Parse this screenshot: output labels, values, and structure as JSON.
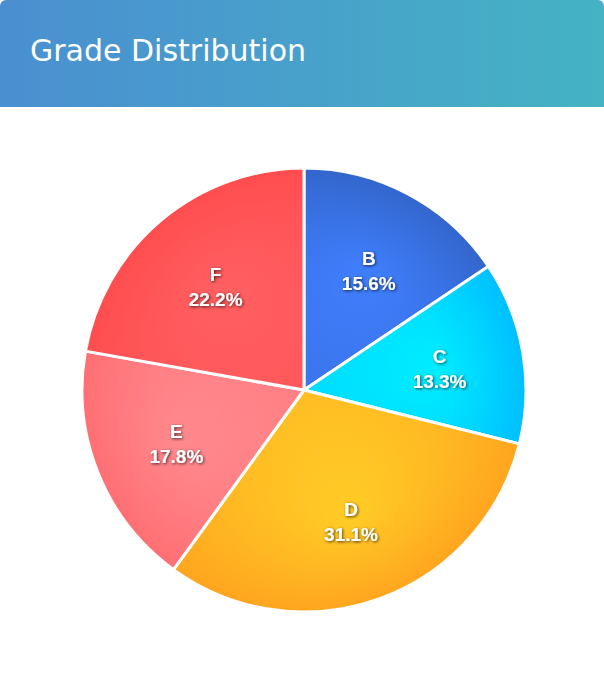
{
  "chart_data": {
    "type": "pie",
    "title": "Grade Distribution",
    "categories": [
      "B",
      "C",
      "D",
      "E",
      "F"
    ],
    "values": [
      15.6,
      13.3,
      31.1,
      17.8,
      22.2
    ],
    "value_labels": [
      "15.6%",
      "13.3%",
      "31.1%",
      "17.8%",
      "22.2%"
    ],
    "colors": [
      "#3366cc",
      "#00bfff",
      "#ffa51f",
      "#ff6f73",
      "#ff4d4f"
    ],
    "data_labels": true
  }
}
